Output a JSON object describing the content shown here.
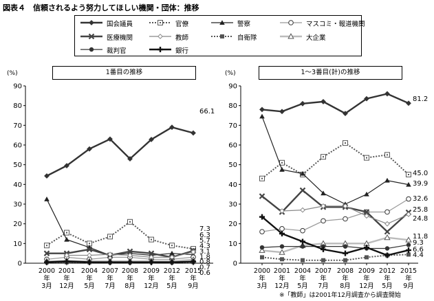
{
  "figure_title": "図表４　信頼されるよう努力してほしい機関・団体：推移",
  "footnote": "※「教師」は2001年12月調査から調査開始",
  "legend": [
    {
      "label": "国会議員",
      "color": "#333333",
      "marker": "diamond-filled",
      "line": "solid-thick"
    },
    {
      "label": "官僚",
      "color": "#555555",
      "marker": "square-open-dot",
      "line": "dotted"
    },
    {
      "label": "警察",
      "color": "#222222",
      "marker": "triangle-filled",
      "line": "solid"
    },
    {
      "label": "マスコミ・報道機関",
      "color": "#999999",
      "marker": "circle-open",
      "line": "solid"
    },
    {
      "label": "医療機関",
      "color": "#444444",
      "marker": "x",
      "line": "solid-thick"
    },
    {
      "label": "教師",
      "color": "#888888",
      "marker": "diamond-open",
      "line": "solid"
    },
    {
      "label": "自衛隊",
      "color": "#555555",
      "marker": "square-filled",
      "line": "dotted"
    },
    {
      "label": "大企業",
      "color": "#bbbbbb",
      "marker": "triangle-open",
      "line": "solid-thick"
    },
    {
      "label": "裁判官",
      "color": "#333333",
      "marker": "circle-filled",
      "line": "solid"
    },
    {
      "label": "銀行",
      "color": "#111111",
      "marker": "plus",
      "line": "solid-thick"
    }
  ],
  "chart_data": [
    {
      "type": "line",
      "title": "1番目の推移",
      "ylabel": "(%)",
      "ylim": [
        0,
        90
      ],
      "yticks": [
        0,
        10,
        20,
        30,
        40,
        50,
        60,
        70,
        80,
        90
      ],
      "categories": [
        [
          "2000",
          "年",
          "3月"
        ],
        [
          "2001",
          "年",
          "12月"
        ],
        [
          "2004",
          "年",
          "5月"
        ],
        [
          "2007",
          "年",
          "7月"
        ],
        [
          "2008",
          "年",
          "8月"
        ],
        [
          "2009",
          "年",
          "12月"
        ],
        [
          "2012",
          "年",
          "5月"
        ],
        [
          "2015",
          "年",
          "9月"
        ]
      ],
      "series": [
        {
          "name": "国会議員",
          "values": [
            44.3,
            49.5,
            58,
            63,
            53,
            62.8,
            69,
            66.1
          ]
        },
        {
          "name": "官僚",
          "values": [
            9,
            15.5,
            10,
            13.5,
            21,
            12,
            9,
            7.3
          ]
        },
        {
          "name": "警察",
          "values": [
            32.5,
            12,
            8,
            4,
            5,
            4,
            5,
            4.3
          ]
        },
        {
          "name": "マスコミ・報道機関",
          "values": [
            2,
            3,
            2,
            3,
            3,
            2,
            2,
            3.1
          ]
        },
        {
          "name": "医療機関",
          "values": [
            5,
            5,
            7,
            4,
            6,
            5,
            3,
            6.3
          ]
        },
        {
          "name": "教師",
          "values": [
            null,
            4,
            4,
            4.5,
            4,
            3,
            3,
            5.7
          ]
        },
        {
          "name": "自衛隊",
          "values": [
            0.5,
            0.5,
            0.5,
            0.5,
            0.5,
            1,
            0.5,
            0.6
          ]
        },
        {
          "name": "大企業",
          "values": [
            1,
            1,
            1,
            1,
            1,
            1,
            1,
            1.8
          ]
        },
        {
          "name": "裁判官",
          "values": [
            0.5,
            0.5,
            0.5,
            0.5,
            0.5,
            0.5,
            0.5,
            0.7
          ]
        },
        {
          "name": "銀行",
          "values": [
            0.5,
            1,
            0.5,
            0.5,
            0.5,
            0.5,
            0.5,
            0.8
          ]
        }
      ],
      "end_labels": [
        "66.1",
        "7.3",
        "6.3",
        "5.7",
        "4.3",
        "3.1",
        "1.8",
        "0.8",
        "0.7",
        "0.6"
      ]
    },
    {
      "type": "line",
      "title": "1～3番目(計)の推移",
      "ylabel": "(%)",
      "ylim": [
        0,
        90
      ],
      "yticks": [
        0,
        10,
        20,
        30,
        40,
        50,
        60,
        70,
        80,
        90
      ],
      "categories": [
        [
          "2000",
          "年",
          "3月"
        ],
        [
          "2001",
          "年",
          "12月"
        ],
        [
          "2004",
          "年",
          "5月"
        ],
        [
          "2007",
          "年",
          "7月"
        ],
        [
          "2008",
          "年",
          "8月"
        ],
        [
          "2009",
          "年",
          "12月"
        ],
        [
          "2012",
          "年",
          "5月"
        ],
        [
          "2015",
          "年",
          "9月"
        ]
      ],
      "series": [
        {
          "name": "国会議員",
          "values": [
            78,
            77,
            81,
            82,
            76,
            83.5,
            86,
            81.2
          ]
        },
        {
          "name": "官僚",
          "values": [
            43,
            51,
            45,
            54,
            61,
            53.5,
            55,
            45
          ]
        },
        {
          "name": "警察",
          "values": [
            74.5,
            47.5,
            45.5,
            35.5,
            30,
            35,
            42,
            39.9
          ]
        },
        {
          "name": "マスコミ・報道機関",
          "values": [
            16,
            17.5,
            16.5,
            21.5,
            22.5,
            26,
            26,
            32.6
          ]
        },
        {
          "name": "医療機関",
          "values": [
            34,
            26,
            37,
            28.5,
            28.5,
            26,
            16,
            25.8
          ]
        },
        {
          "name": "教師",
          "values": [
            null,
            26.5,
            27,
            29,
            29,
            24,
            20,
            24.8
          ]
        },
        {
          "name": "自衛隊",
          "values": [
            3,
            2,
            1.5,
            1.5,
            1.5,
            3,
            4,
            4.4
          ]
        },
        {
          "name": "大企業",
          "values": [
            6.5,
            5.5,
            9,
            10,
            10,
            10,
            13,
            11.8
          ]
        },
        {
          "name": "裁判官",
          "values": [
            8,
            8.5,
            8.5,
            8.5,
            8.5,
            7.5,
            7.5,
            9.3
          ]
        },
        {
          "name": "銀行",
          "values": [
            23.5,
            15,
            11,
            7,
            5,
            8,
            4,
            6.6
          ]
        }
      ],
      "end_labels": [
        "81.2",
        "45.0",
        "39.9",
        "32.6",
        "25.8",
        "24.8",
        "11.8",
        "9.3",
        "6.6",
        "4.4"
      ]
    }
  ]
}
